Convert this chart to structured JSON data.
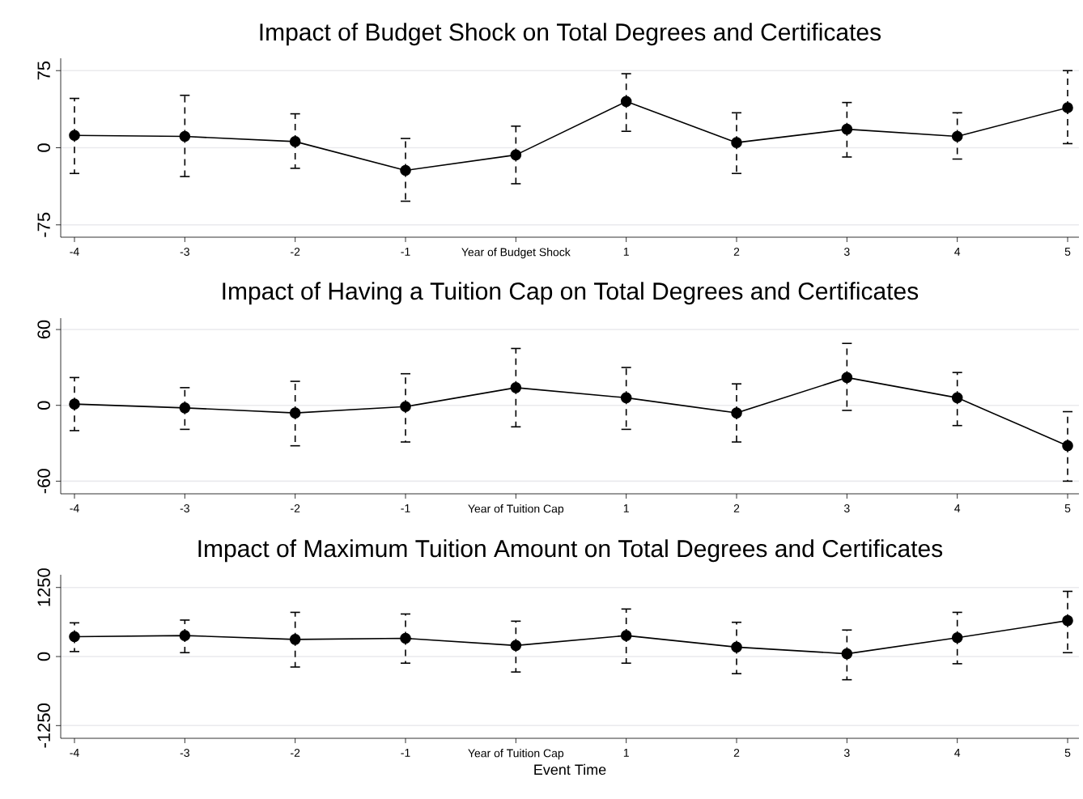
{
  "chart_data": [
    {
      "type": "line",
      "title": "Impact of Budget Shock on Total Degrees and Certificates",
      "categories": [
        "-4",
        "-3",
        "-2",
        "-1",
        "Year of Budget Shock",
        "1",
        "2",
        "3",
        "4",
        "5"
      ],
      "values": [
        12,
        11,
        6,
        -22,
        -7,
        45,
        5,
        18,
        11,
        39
      ],
      "errors": [
        [
          -25,
          48
        ],
        [
          -28,
          51
        ],
        [
          -20,
          33
        ],
        [
          -52,
          9
        ],
        [
          -35,
          21
        ],
        [
          16,
          72
        ],
        [
          -25,
          34
        ],
        [
          -9,
          44
        ],
        [
          -11,
          34
        ],
        [
          4,
          75
        ]
      ],
      "color": "#000000",
      "marker": "circle",
      "grid": "y",
      "ylim": [
        -87,
        87
      ],
      "yticks": [
        -75,
        0,
        75
      ]
    },
    {
      "type": "line",
      "title": "Impact of Having a Tuition Cap on Total Degrees and Certificates",
      "categories": [
        "-4",
        "-3",
        "-2",
        "-1",
        "Year of Tuition Cap",
        "1",
        "2",
        "3",
        "4",
        "5"
      ],
      "values": [
        1,
        -2,
        -6,
        -1,
        14,
        6,
        -6,
        22,
        6,
        -32
      ],
      "errors": [
        [
          -20,
          22
        ],
        [
          -19,
          14
        ],
        [
          -32,
          19
        ],
        [
          -29,
          25
        ],
        [
          -17,
          45
        ],
        [
          -19,
          30
        ],
        [
          -29,
          17
        ],
        [
          -4,
          49
        ],
        [
          -16,
          26
        ],
        [
          -60,
          -5
        ]
      ],
      "color": "#000000",
      "marker": "circle",
      "grid": "y",
      "ylim": [
        -70,
        69
      ],
      "yticks": [
        -60,
        0,
        60
      ]
    },
    {
      "type": "line",
      "title": "Impact of Maximum Tuition Amount on Total Degrees and Certificates",
      "xlabel": "Event Time",
      "categories": [
        "-4",
        "-3",
        "-2",
        "-1",
        "Year of Tuition Cap",
        "1",
        "2",
        "3",
        "4",
        "5"
      ],
      "values": [
        360,
        380,
        310,
        330,
        200,
        380,
        170,
        50,
        340,
        650
      ],
      "errors": [
        [
          90,
          610
        ],
        [
          70,
          660
        ],
        [
          -190,
          800
        ],
        [
          -120,
          770
        ],
        [
          -280,
          640
        ],
        [
          -120,
          860
        ],
        [
          -310,
          620
        ],
        [
          -420,
          480
        ],
        [
          -130,
          800
        ],
        [
          70,
          1180
        ]
      ],
      "color": "#000000",
      "marker": "circle",
      "grid": "y",
      "ylim": [
        -1480,
        1480
      ],
      "yticks": [
        -1250,
        0,
        1250
      ]
    }
  ]
}
